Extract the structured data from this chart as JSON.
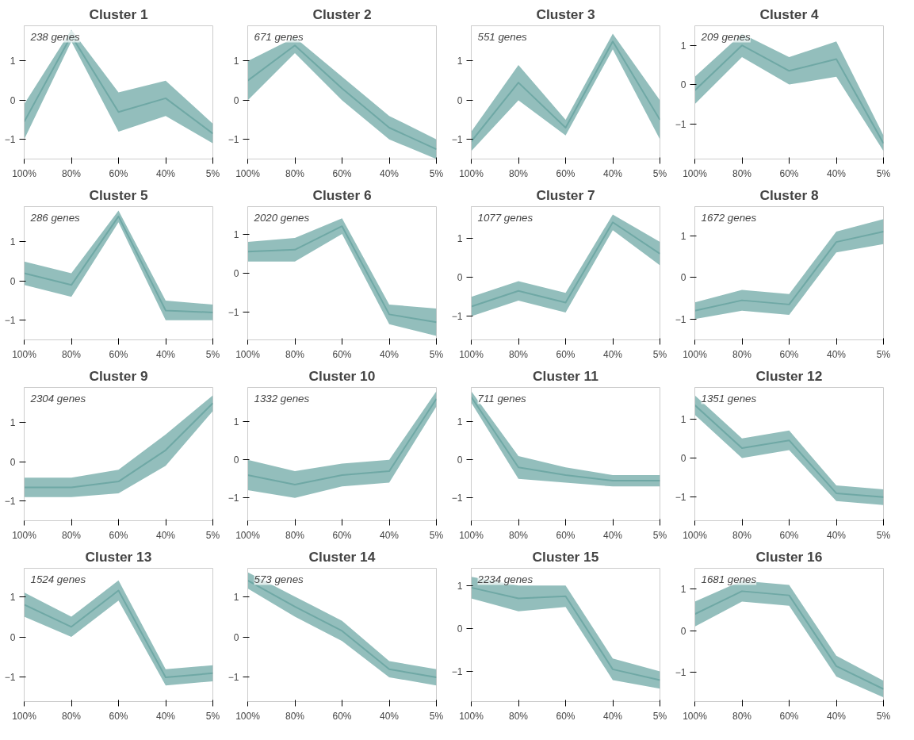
{
  "chart_data": [
    {
      "type": "line",
      "title": "Cluster 1",
      "annotations": [
        "238 genes"
      ],
      "categories": [
        "100%",
        "80%",
        "60%",
        "40%",
        "5%"
      ],
      "ylim": [
        -1.5,
        1.9
      ],
      "yticks": [
        -1,
        0,
        1
      ],
      "series": [
        {
          "color": "#6fa8a5",
          "values": [
            -0.55,
            1.65,
            -0.3,
            0.05,
            -0.85
          ],
          "lower": [
            -1,
            1.5,
            -0.8,
            -0.4,
            -1.1
          ],
          "upper": [
            -0.1,
            1.8,
            0.2,
            0.5,
            -0.6
          ]
        }
      ]
    },
    {
      "type": "line",
      "title": "Cluster 2",
      "annotations": [
        "671 genes"
      ],
      "categories": [
        "100%",
        "80%",
        "60%",
        "40%",
        "5%"
      ],
      "ylim": [
        -1.5,
        1.9
      ],
      "yticks": [
        -1,
        0,
        1
      ],
      "series": [
        {
          "color": "#6fa8a5",
          "values": [
            0.5,
            1.4,
            0.3,
            -0.7,
            -1.25
          ],
          "lower": [
            0,
            1.2,
            0,
            -1,
            -1.5
          ],
          "upper": [
            1,
            1.6,
            0.6,
            -0.4,
            -1
          ]
        }
      ]
    },
    {
      "type": "line",
      "title": "Cluster 3",
      "annotations": [
        "551 genes"
      ],
      "categories": [
        "100%",
        "80%",
        "60%",
        "40%",
        "5%"
      ],
      "ylim": [
        -1.5,
        1.9
      ],
      "yticks": [
        -1,
        0,
        1
      ],
      "series": [
        {
          "color": "#6fa8a5",
          "values": [
            -1.05,
            0.45,
            -0.7,
            1.5,
            -0.5
          ],
          "lower": [
            -1.3,
            0,
            -0.9,
            1.3,
            -1
          ],
          "upper": [
            -0.8,
            0.9,
            -0.5,
            1.7,
            0
          ]
        }
      ]
    },
    {
      "type": "line",
      "title": "Cluster 4",
      "annotations": [
        "209 genes"
      ],
      "categories": [
        "100%",
        "80%",
        "60%",
        "40%",
        "5%"
      ],
      "ylim": [
        -1.9,
        1.5
      ],
      "yticks": [
        -1,
        0,
        1
      ],
      "series": [
        {
          "color": "#6fa8a5",
          "values": [
            -0.15,
            1,
            0.35,
            0.65,
            -1.5
          ],
          "lower": [
            -0.5,
            0.7,
            0,
            0.2,
            -1.7
          ],
          "upper": [
            0.2,
            1.3,
            0.7,
            1.1,
            -1.3
          ]
        }
      ]
    },
    {
      "type": "line",
      "title": "Cluster 5",
      "annotations": [
        "286 genes"
      ],
      "categories": [
        "100%",
        "80%",
        "60%",
        "40%",
        "5%"
      ],
      "ylim": [
        -1.5,
        1.9
      ],
      "yticks": [
        -1,
        0,
        1
      ],
      "series": [
        {
          "color": "#6fa8a5",
          "values": [
            0.2,
            -0.1,
            1.65,
            -0.75,
            -0.8
          ],
          "lower": [
            -0.1,
            -0.4,
            1.5,
            -1,
            -1
          ],
          "upper": [
            0.5,
            0.2,
            1.8,
            -0.5,
            -0.6
          ]
        }
      ]
    },
    {
      "type": "line",
      "title": "Cluster 6",
      "annotations": [
        "2020 genes"
      ],
      "categories": [
        "100%",
        "80%",
        "60%",
        "40%",
        "5%"
      ],
      "ylim": [
        -1.7,
        1.7
      ],
      "yticks": [
        -1,
        0,
        1
      ],
      "series": [
        {
          "color": "#6fa8a5",
          "values": [
            0.55,
            0.6,
            1.2,
            -1.05,
            -1.25
          ],
          "lower": [
            0.3,
            0.3,
            1,
            -1.3,
            -1.6
          ],
          "upper": [
            0.8,
            0.9,
            1.4,
            -0.8,
            -0.9
          ]
        }
      ]
    },
    {
      "type": "line",
      "title": "Cluster 7",
      "annotations": [
        "1077 genes"
      ],
      "categories": [
        "100%",
        "80%",
        "60%",
        "40%",
        "5%"
      ],
      "ylim": [
        -1.6,
        1.8
      ],
      "yticks": [
        -1,
        0,
        1
      ],
      "series": [
        {
          "color": "#6fa8a5",
          "values": [
            -0.75,
            -0.35,
            -0.65,
            1.4,
            0.6
          ],
          "lower": [
            -1,
            -0.6,
            -0.9,
            1.2,
            0.3
          ],
          "upper": [
            -0.5,
            -0.1,
            -0.4,
            1.6,
            0.9
          ]
        }
      ]
    },
    {
      "type": "line",
      "title": "Cluster 8",
      "annotations": [
        "1672 genes"
      ],
      "categories": [
        "100%",
        "80%",
        "60%",
        "40%",
        "5%"
      ],
      "ylim": [
        -1.5,
        1.7
      ],
      "yticks": [
        -1,
        0,
        1
      ],
      "series": [
        {
          "color": "#6fa8a5",
          "values": [
            -0.8,
            -0.55,
            -0.65,
            0.85,
            1.1
          ],
          "lower": [
            -1,
            -0.8,
            -0.9,
            0.6,
            0.8
          ],
          "upper": [
            -0.6,
            -0.3,
            -0.4,
            1.1,
            1.4
          ]
        }
      ]
    },
    {
      "type": "line",
      "title": "Cluster 9",
      "annotations": [
        "2304 genes"
      ],
      "categories": [
        "100%",
        "80%",
        "60%",
        "40%",
        "5%"
      ],
      "ylim": [
        -1.5,
        1.9
      ],
      "yticks": [
        -1,
        0,
        1
      ],
      "series": [
        {
          "color": "#6fa8a5",
          "values": [
            -0.65,
            -0.65,
            -0.5,
            0.3,
            1.5
          ],
          "lower": [
            -0.9,
            -0.9,
            -0.8,
            -0.1,
            1.3
          ],
          "upper": [
            -0.4,
            -0.4,
            -0.2,
            0.7,
            1.7
          ]
        }
      ]
    },
    {
      "type": "line",
      "title": "Cluster 10",
      "annotations": [
        "1332 genes"
      ],
      "categories": [
        "100%",
        "80%",
        "60%",
        "40%",
        "5%"
      ],
      "ylim": [
        -1.6,
        1.9
      ],
      "yticks": [
        -1,
        0,
        1
      ],
      "series": [
        {
          "color": "#6fa8a5",
          "values": [
            -0.4,
            -0.65,
            -0.4,
            -0.3,
            1.6
          ],
          "lower": [
            -0.8,
            -1,
            -0.7,
            -0.6,
            1.4
          ],
          "upper": [
            0,
            -0.3,
            -0.1,
            0,
            1.8
          ]
        }
      ]
    },
    {
      "type": "line",
      "title": "Cluster 11",
      "annotations": [
        "711 genes"
      ],
      "categories": [
        "100%",
        "80%",
        "60%",
        "40%",
        "5%"
      ],
      "ylim": [
        -1.6,
        1.9
      ],
      "yticks": [
        -1,
        0,
        1
      ],
      "series": [
        {
          "color": "#6fa8a5",
          "values": [
            1.65,
            -0.2,
            -0.4,
            -0.55,
            -0.55
          ],
          "lower": [
            1.5,
            -0.5,
            -0.6,
            -0.7,
            -0.7
          ],
          "upper": [
            1.8,
            0.1,
            -0.2,
            -0.4,
            -0.4
          ]
        }
      ]
    },
    {
      "type": "line",
      "title": "Cluster 12",
      "annotations": [
        "1351 genes"
      ],
      "categories": [
        "100%",
        "80%",
        "60%",
        "40%",
        "5%"
      ],
      "ylim": [
        -1.6,
        1.8
      ],
      "yticks": [
        -1,
        0,
        1
      ],
      "series": [
        {
          "color": "#6fa8a5",
          "values": [
            1.35,
            0.25,
            0.45,
            -0.9,
            -1
          ],
          "lower": [
            1.1,
            0,
            0.2,
            -1.1,
            -1.2
          ],
          "upper": [
            1.6,
            0.5,
            0.7,
            -0.7,
            -0.8
          ]
        }
      ]
    },
    {
      "type": "line",
      "title": "Cluster 13",
      "annotations": [
        "1524 genes"
      ],
      "categories": [
        "100%",
        "80%",
        "60%",
        "40%",
        "5%"
      ],
      "ylim": [
        -1.6,
        1.7
      ],
      "yticks": [
        -1,
        0,
        1
      ],
      "series": [
        {
          "color": "#6fa8a5",
          "values": [
            0.8,
            0.25,
            1.15,
            -1,
            -0.9
          ],
          "lower": [
            0.5,
            0,
            0.9,
            -1.2,
            -1.1
          ],
          "upper": [
            1.1,
            0.5,
            1.4,
            -0.8,
            -0.7
          ]
        }
      ]
    },
    {
      "type": "line",
      "title": "Cluster 14",
      "annotations": [
        "573 genes"
      ],
      "categories": [
        "100%",
        "80%",
        "60%",
        "40%",
        "5%"
      ],
      "ylim": [
        -1.6,
        1.7
      ],
      "yticks": [
        -1,
        0,
        1
      ],
      "series": [
        {
          "color": "#6fa8a5",
          "values": [
            1.4,
            0.75,
            0.15,
            -0.8,
            -1
          ],
          "lower": [
            1.2,
            0.5,
            -0.1,
            -1,
            -1.2
          ],
          "upper": [
            1.6,
            1,
            0.4,
            -0.6,
            -0.8
          ]
        }
      ]
    },
    {
      "type": "line",
      "title": "Cluster 15",
      "annotations": [
        "2234 genes"
      ],
      "categories": [
        "100%",
        "80%",
        "60%",
        "40%",
        "5%"
      ],
      "ylim": [
        -1.7,
        1.4
      ],
      "yticks": [
        -1,
        0,
        1
      ],
      "series": [
        {
          "color": "#6fa8a5",
          "values": [
            0.95,
            0.7,
            0.75,
            -0.95,
            -1.2
          ],
          "lower": [
            0.7,
            0.4,
            0.5,
            -1.2,
            -1.4
          ],
          "upper": [
            1.2,
            1,
            1,
            -0.7,
            -1
          ]
        }
      ]
    },
    {
      "type": "line",
      "title": "Cluster 16",
      "annotations": [
        "1681 genes"
      ],
      "categories": [
        "100%",
        "80%",
        "60%",
        "40%",
        "5%"
      ],
      "ylim": [
        -1.7,
        1.5
      ],
      "yticks": [
        -1,
        0,
        1
      ],
      "series": [
        {
          "color": "#6fa8a5",
          "values": [
            0.4,
            0.95,
            0.85,
            -0.85,
            -1.4
          ],
          "lower": [
            0.1,
            0.7,
            0.6,
            -1.1,
            -1.6
          ],
          "upper": [
            0.7,
            1.2,
            1.1,
            -0.6,
            -1.2
          ]
        }
      ]
    }
  ]
}
